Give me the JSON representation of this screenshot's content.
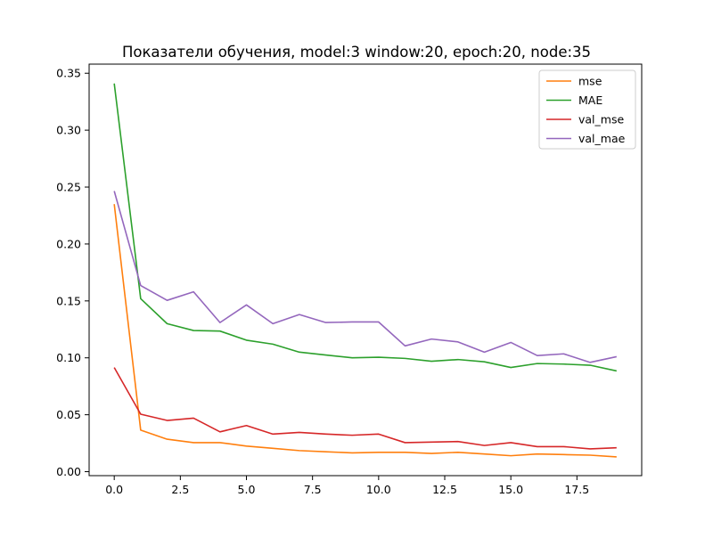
{
  "chart_data": {
    "type": "line",
    "title": "Показатели обучения, model:3 window:20, epoch:20, node:35",
    "xlabel": "",
    "ylabel": "",
    "xlim": [
      -0.95,
      19.95
    ],
    "ylim": [
      -0.0035,
      0.358
    ],
    "x_ticks": [
      0.0,
      2.5,
      5.0,
      7.5,
      10.0,
      12.5,
      15.0,
      17.5
    ],
    "x_tick_labels": [
      "0.0",
      "2.5",
      "5.0",
      "7.5",
      "10.0",
      "12.5",
      "15.0",
      "17.5"
    ],
    "y_ticks": [
      0.0,
      0.05,
      0.1,
      0.15,
      0.2,
      0.25,
      0.3,
      0.35
    ],
    "y_tick_labels": [
      "0.00",
      "0.05",
      "0.10",
      "0.15",
      "0.20",
      "0.25",
      "0.30",
      "0.35"
    ],
    "grid": false,
    "legend_position": "upper right",
    "x": [
      0,
      1,
      2,
      3,
      4,
      5,
      6,
      7,
      8,
      9,
      10,
      11,
      12,
      13,
      14,
      15,
      16,
      17,
      18,
      19
    ],
    "series": [
      {
        "name": "mse",
        "color": "#ff7f0e",
        "values": [
          0.235,
          0.0365,
          0.0285,
          0.0255,
          0.0255,
          0.0225,
          0.0205,
          0.0185,
          0.0175,
          0.0165,
          0.017,
          0.017,
          0.016,
          0.017,
          0.0155,
          0.014,
          0.0155,
          0.015,
          0.0145,
          0.013
        ]
      },
      {
        "name": "MAE",
        "color": "#2ca02c",
        "values": [
          0.341,
          0.152,
          0.13,
          0.124,
          0.1235,
          0.1155,
          0.112,
          0.105,
          0.1025,
          0.1,
          0.1005,
          0.0995,
          0.097,
          0.0985,
          0.0965,
          0.0915,
          0.095,
          0.0945,
          0.0935,
          0.0885
        ]
      },
      {
        "name": "val_mse",
        "color": "#d62728",
        "values": [
          0.0915,
          0.0505,
          0.045,
          0.047,
          0.035,
          0.0405,
          0.033,
          0.0345,
          0.033,
          0.032,
          0.033,
          0.0255,
          0.026,
          0.0265,
          0.023,
          0.0255,
          0.022,
          0.022,
          0.02,
          0.021
        ]
      },
      {
        "name": "val_mae",
        "color": "#9467bd",
        "values": [
          0.2465,
          0.1635,
          0.1505,
          0.158,
          0.131,
          0.1465,
          0.13,
          0.138,
          0.131,
          0.1315,
          0.1315,
          0.1105,
          0.1165,
          0.114,
          0.105,
          0.1135,
          0.102,
          0.1035,
          0.096,
          0.101
        ]
      }
    ]
  }
}
